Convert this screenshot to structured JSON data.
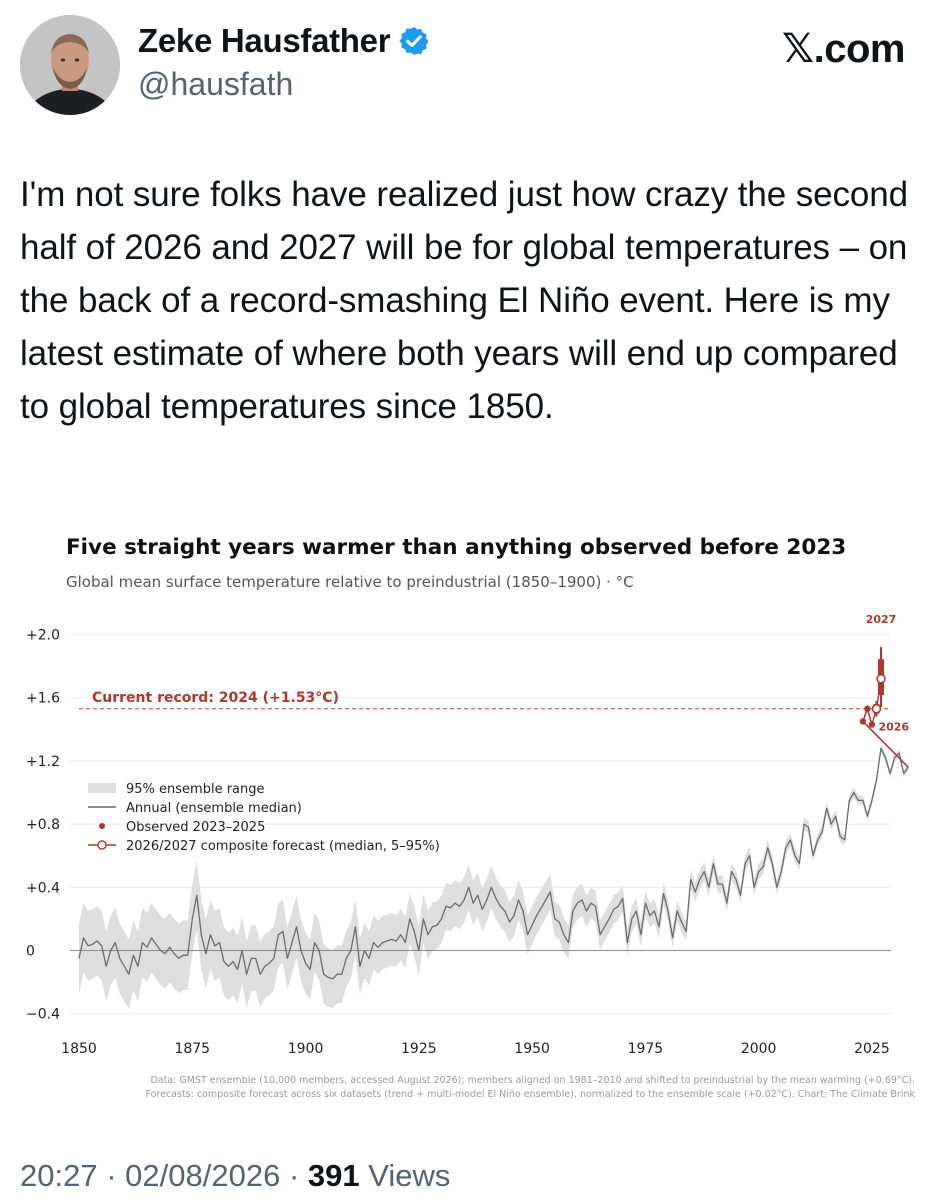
{
  "author": {
    "name": "Zeke Hausfather",
    "handle": "@hausfath"
  },
  "watermark": "𝕏.com",
  "tweet_text": "I'm not sure folks have realized just how crazy the second half of 2026 and 2027 will be for global temperatures – on the back of a record-smashing El Niño event. Here is my latest estimate of where both years will end up compared to global temperatures since 1850.",
  "footer": {
    "time": "20:27",
    "separator": "·",
    "date": "02/08/2026",
    "views_count": "391",
    "views_label": "Views"
  },
  "colors": {
    "verified": "#1d9bf0",
    "record_red": "#a83a32",
    "series_gray": "#6b6b6b",
    "band_gray": "#dedede"
  },
  "chart_data": {
    "type": "line",
    "title": "Five straight years warmer than anything observed before 2023",
    "subtitle": "Global mean surface temperature relative to preindustrial (1850–1900)  ·  °C",
    "xlim": [
      1850,
      2030
    ],
    "ylim": [
      -0.45,
      2.05
    ],
    "x_ticks": [
      1850,
      1875,
      1900,
      1925,
      1950,
      1975,
      2000,
      2025
    ],
    "y_ticks": [
      {
        "value": 2.0,
        "label": "+2.0"
      },
      {
        "value": 1.6,
        "label": "+1.6"
      },
      {
        "value": 1.2,
        "label": "+1.2"
      },
      {
        "value": 0.8,
        "label": "+0.8"
      },
      {
        "value": 0.4,
        "label": "+0.4"
      },
      {
        "value": 0.0,
        "label": "0"
      },
      {
        "value": -0.4,
        "label": "−0.4"
      }
    ],
    "record_line": {
      "value": 1.53,
      "label": "Current record: 2024 (+1.53°C)"
    },
    "legend": {
      "placement": "left",
      "entries": [
        "95% ensemble range",
        "Annual (ensemble median)",
        "Observed 2023–2025",
        "2026/2027 composite forecast (median, 5–95%)"
      ]
    },
    "annual_median": {
      "start_year": 1850,
      "values": [
        -0.05,
        0.08,
        0.03,
        0.04,
        0.06,
        0.03,
        -0.1,
        0.0,
        0.05,
        -0.05,
        -0.1,
        -0.15,
        -0.03,
        -0.1,
        0.05,
        0.02,
        0.08,
        0.04,
        0.0,
        -0.02,
        0.02,
        -0.02,
        -0.05,
        -0.03,
        -0.03,
        0.2,
        0.35,
        0.1,
        -0.02,
        0.1,
        0.03,
        0.05,
        -0.07,
        -0.1,
        -0.07,
        -0.12,
        0.0,
        -0.15,
        -0.05,
        -0.05,
        -0.15,
        -0.1,
        -0.08,
        -0.05,
        0.1,
        0.12,
        -0.05,
        0.05,
        0.15,
        0.0,
        -0.08,
        -0.12,
        0.05,
        0.0,
        -0.15,
        -0.17,
        -0.18,
        -0.15,
        -0.15,
        -0.05,
        0.0,
        0.15,
        -0.1,
        0.0,
        -0.05,
        0.05,
        0.02,
        0.05,
        0.06,
        0.07,
        0.06,
        0.1,
        0.05,
        0.2,
        0.12,
        0.0,
        0.2,
        0.1,
        0.15,
        0.16,
        0.2,
        0.28,
        0.27,
        0.3,
        0.28,
        0.32,
        0.4,
        0.3,
        0.35,
        0.26,
        0.32,
        0.4,
        0.33,
        0.28,
        0.25,
        0.18,
        0.22,
        0.32,
        0.25,
        0.1,
        0.16,
        0.22,
        0.27,
        0.32,
        0.37,
        0.2,
        0.18,
        0.1,
        0.05,
        0.25,
        0.3,
        0.32,
        0.25,
        0.3,
        0.28,
        0.1,
        0.15,
        0.2,
        0.26,
        0.28,
        0.33,
        0.05,
        0.2,
        0.25,
        0.1,
        0.3,
        0.22,
        0.25,
        0.15,
        0.36,
        0.25,
        0.08,
        0.25,
        0.18,
        0.12,
        0.45,
        0.37,
        0.45,
        0.5,
        0.4,
        0.55,
        0.42,
        0.42,
        0.3,
        0.5,
        0.45,
        0.35,
        0.55,
        0.6,
        0.4,
        0.5,
        0.53,
        0.65,
        0.55,
        0.4,
        0.5,
        0.65,
        0.7,
        0.6,
        0.55,
        0.8,
        0.78,
        0.6,
        0.7,
        0.75,
        0.9,
        0.8,
        0.85,
        0.72,
        0.7,
        0.95,
        1.0,
        0.95,
        0.95,
        0.85,
        0.95,
        1.08,
        1.28,
        1.22,
        1.12,
        1.22,
        1.25,
        1.12,
        1.16
      ]
    },
    "observed": [
      {
        "x": 2023,
        "y": 1.45
      },
      {
        "x": 2024,
        "y": 1.53
      },
      {
        "x": 2025,
        "y": 1.43
      }
    ],
    "forecast": [
      {
        "x": 2026,
        "y": 1.53,
        "low": 1.48,
        "high": 1.58,
        "label": "2026"
      },
      {
        "x": 2027,
        "y": 1.72,
        "low": 1.54,
        "high": 1.92,
        "label": "2027"
      }
    ],
    "footnote": [
      "Data: GMST ensemble (10,000 members, accessed August 2026); members aligned on 1981–2010 and shifted to preindustrial by the mean warming (+0.69°C).",
      "Forecasts: composite forecast across six datasets (trend + multi-model El Niño ensemble), normalized to the ensemble scale (+0.02°C). Chart: The Climate Brink"
    ]
  }
}
